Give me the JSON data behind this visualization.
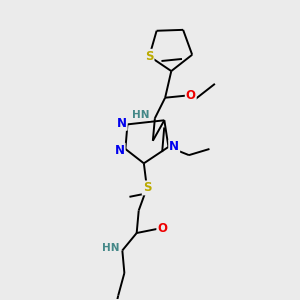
{
  "bg_color": "#ebebeb",
  "atom_colors": {
    "C": "#000000",
    "N": "#0000ee",
    "O": "#ee0000",
    "S": "#bbaa00",
    "H": "#448888"
  },
  "bond_color": "#000000",
  "lw": 1.4,
  "fs": 7.5
}
